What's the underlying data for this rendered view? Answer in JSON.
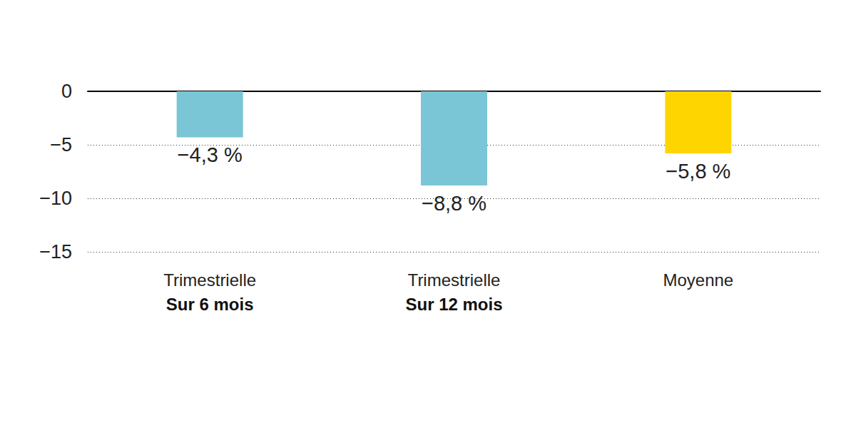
{
  "chart_data": {
    "type": "bar",
    "categories": [
      "Trimestrielle\nSur 6 mois",
      "Trimestrielle\nSur 12 mois",
      "Moyenne"
    ],
    "values": [
      -4.3,
      -8.8,
      -5.8
    ],
    "value_labels": [
      "−4,3 %",
      "−8,8 %",
      "−5,8 %"
    ],
    "colors": [
      "#7ac6d6",
      "#7ac6d6",
      "#ffd500"
    ],
    "ylim": [
      -15,
      0
    ],
    "yticks": [
      {
        "value": -15,
        "label": "−15"
      },
      {
        "value": -10,
        "label": "−10"
      },
      {
        "value": -5,
        "label": "−5"
      },
      0
    ],
    "grid": true,
    "data_labels": true
  }
}
